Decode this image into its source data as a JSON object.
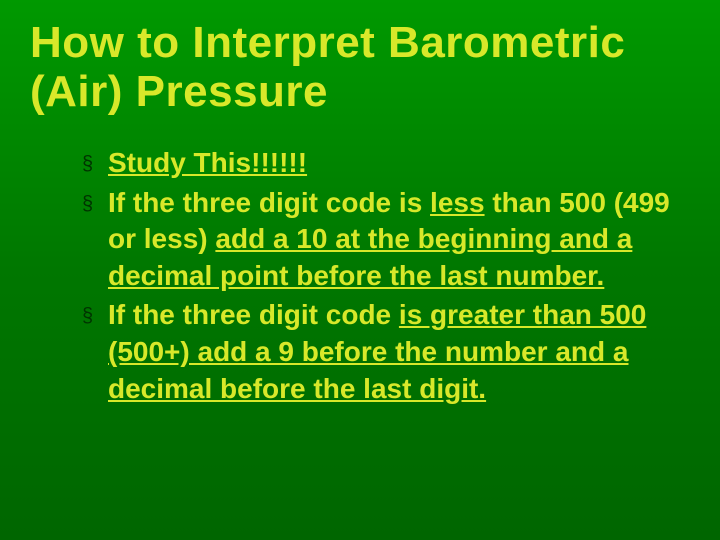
{
  "slide": {
    "background_gradient": [
      "#009900",
      "#007700",
      "#006600"
    ],
    "title": {
      "text": "How to Interpret Barometric (Air) Pressure",
      "color": "#d8e82a",
      "font_size_pt": 44,
      "font_weight": 900,
      "font_family": "Arial Black"
    },
    "bullet_style": {
      "marker": "§",
      "marker_color": "#003300",
      "text_color": "#d8e82a",
      "text_font_size_pt": 28,
      "text_font_weight": "bold",
      "text_font_family": "Arial"
    },
    "bullets": [
      {
        "segments": [
          {
            "text": "Study This!!!!!!",
            "underline": true
          }
        ]
      },
      {
        "segments": [
          {
            "text": "If the three digit code is ",
            "underline": false
          },
          {
            "text": "less",
            "underline": true
          },
          {
            "text": " than 500 (499 or less) ",
            "underline": false
          },
          {
            "text": "add a 10 at the beginning and a decimal point before the last number.",
            "underline": true
          }
        ]
      },
      {
        "segments": [
          {
            "text": "If the three digit code ",
            "underline": false
          },
          {
            "text": "is greater than 500 (500+) add a 9 before the number and a decimal before the last digit.",
            "underline": true
          }
        ]
      }
    ]
  }
}
